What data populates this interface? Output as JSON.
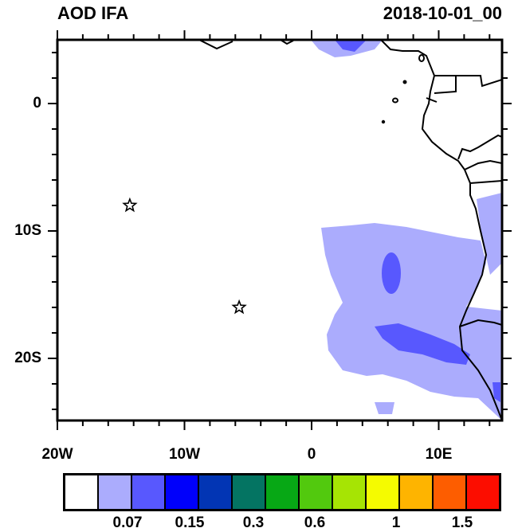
{
  "title_left": "AOD IFA",
  "title_right": "2018-10-01_00",
  "x_ticks": [
    {
      "lon": -20,
      "label": "20W"
    },
    {
      "lon": -10,
      "label": "10W"
    },
    {
      "lon": 0,
      "label": "0"
    },
    {
      "lon": 10,
      "label": "10E"
    }
  ],
  "y_ticks": [
    {
      "lat": 0,
      "label": "0"
    },
    {
      "lat": -10,
      "label": "10S"
    },
    {
      "lat": -20,
      "label": "20S"
    }
  ],
  "extent": {
    "lon": [
      -20,
      15
    ],
    "lat": [
      -25,
      5
    ]
  },
  "markers": [
    {
      "type": "star",
      "lon": -14.3,
      "lat": -8
    },
    {
      "type": "star",
      "lon": -5.7,
      "lat": -16
    }
  ],
  "colorbar": {
    "colors": [
      "#ffffff",
      "#abacfd",
      "#5858fe",
      "#0000fb",
      "#0235b4",
      "#047462",
      "#07a815",
      "#52c90e",
      "#a6e404",
      "#f5fb00",
      "#feb400",
      "#fd5d00",
      "#fc0d00"
    ],
    "labels": [
      "0.07",
      "0.15",
      "0.3",
      "0.6",
      "1",
      "1.5"
    ]
  }
}
